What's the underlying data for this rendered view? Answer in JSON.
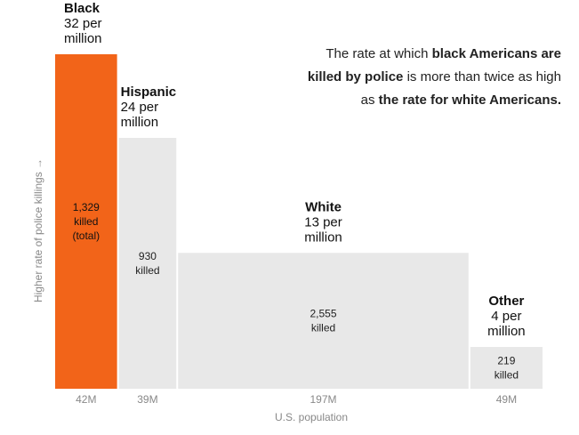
{
  "annotation": {
    "line1_pre": "The rate at which ",
    "line1_bold": "black Americans are",
    "line2_bold": "killed by police",
    "line2_post": " is more than twice as high",
    "line3_pre": "as ",
    "line3_bold": "the rate for white Americans."
  },
  "chart_data": {
    "type": "bar",
    "variant": "variable-width (marimekko)",
    "xlabel": "U.S. population",
    "ylabel": "Higher rate of police killings →",
    "categories": [
      "Black",
      "Hispanic",
      "White",
      "Other"
    ],
    "values": [
      32,
      24,
      13,
      4
    ],
    "value_labels": [
      "32 per million",
      "24 per million",
      "13 per million",
      "4 per million"
    ],
    "widths": [
      42,
      39,
      197,
      49
    ],
    "width_labels": [
      "42M",
      "39M",
      "197M",
      "49M"
    ],
    "killed_labels": [
      [
        "1,329",
        "killed",
        "(total)"
      ],
      [
        "930",
        "killed"
      ],
      [
        "2,555",
        "killed"
      ],
      [
        "219",
        "killed"
      ]
    ],
    "colors": [
      "#f26419",
      "#e8e8e8",
      "#e8e8e8",
      "#e8e8e8"
    ],
    "ylim": [
      0,
      32
    ],
    "grid": false
  }
}
